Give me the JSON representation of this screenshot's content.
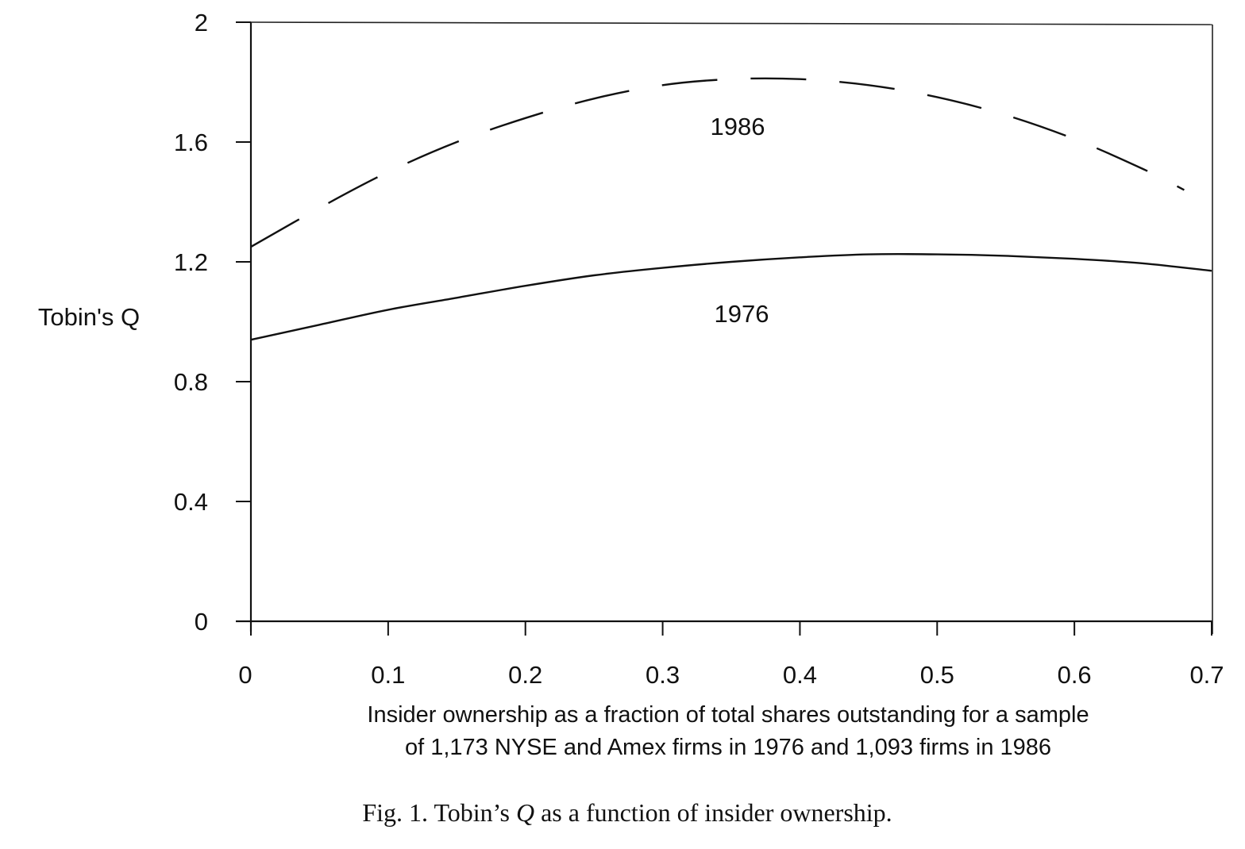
{
  "chart_data": {
    "type": "line",
    "title": "",
    "ylabel": "Tobin's Q",
    "xlabel_lines": [
      "Insider ownership as a fraction of total shares outstanding for a sample",
      "of 1,173 NYSE and Amex firms in 1976 and 1,093 firms in 1986"
    ],
    "xlim": [
      0,
      0.7
    ],
    "ylim": [
      0,
      2
    ],
    "x_ticks": [
      "0",
      "0.1",
      "0.2",
      "0.3",
      "0.4",
      "0.5",
      "0.6",
      "0.7"
    ],
    "y_ticks": [
      "0",
      "0.4",
      "0.8",
      "1.2",
      "1.6",
      "2"
    ],
    "grid": false,
    "series": [
      {
        "name": "1986",
        "style": "dashed",
        "x": [
          0,
          0.05,
          0.1,
          0.15,
          0.2,
          0.25,
          0.3,
          0.35,
          0.4,
          0.45,
          0.5,
          0.55,
          0.6,
          0.65,
          0.68
        ],
        "values": [
          1.25,
          1.38,
          1.5,
          1.6,
          1.68,
          1.745,
          1.79,
          1.81,
          1.81,
          1.79,
          1.75,
          1.69,
          1.61,
          1.51,
          1.44
        ]
      },
      {
        "name": "1976",
        "style": "solid",
        "x": [
          0,
          0.05,
          0.1,
          0.15,
          0.2,
          0.25,
          0.3,
          0.35,
          0.4,
          0.45,
          0.5,
          0.55,
          0.6,
          0.65,
          0.7
        ],
        "values": [
          0.94,
          0.99,
          1.04,
          1.08,
          1.12,
          1.155,
          1.18,
          1.2,
          1.215,
          1.225,
          1.225,
          1.22,
          1.21,
          1.195,
          1.17
        ]
      }
    ]
  },
  "caption": {
    "prefix": "Fig. 1.  Tobin’s ",
    "italic": "Q",
    "suffix": " as a function of insider ownership."
  }
}
